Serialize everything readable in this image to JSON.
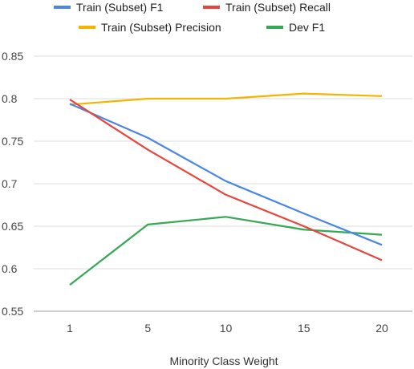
{
  "chart_data": {
    "type": "line",
    "title": "",
    "xlabel": "Minority Class Weight",
    "ylabel": "",
    "categories": [
      "1",
      "5",
      "10",
      "15",
      "20"
    ],
    "ylim": [
      0.55,
      0.85
    ],
    "yticks": [
      "0.55",
      "0.6",
      "0.65",
      "0.7",
      "0.75",
      "0.8",
      "0.85"
    ],
    "grid": true,
    "legend_position": "top",
    "series": [
      {
        "name": "Train (Subset) F1",
        "color": "#4a86e8",
        "values": [
          0.794,
          0.754,
          0.703,
          0.665,
          0.628
        ]
      },
      {
        "name": "Train (Subset) Recall",
        "color": "#e8453c",
        "values": [
          0.799,
          0.74,
          0.687,
          0.65,
          0.61
        ]
      },
      {
        "name": "Train (Subset) Precision",
        "color": "#f4b400",
        "values": [
          0.793,
          0.8,
          0.8,
          0.806,
          0.803
        ]
      },
      {
        "name": "Dev F1",
        "color": "#34a853",
        "values": [
          0.581,
          0.652,
          0.661,
          0.646,
          0.64
        ]
      }
    ]
  }
}
